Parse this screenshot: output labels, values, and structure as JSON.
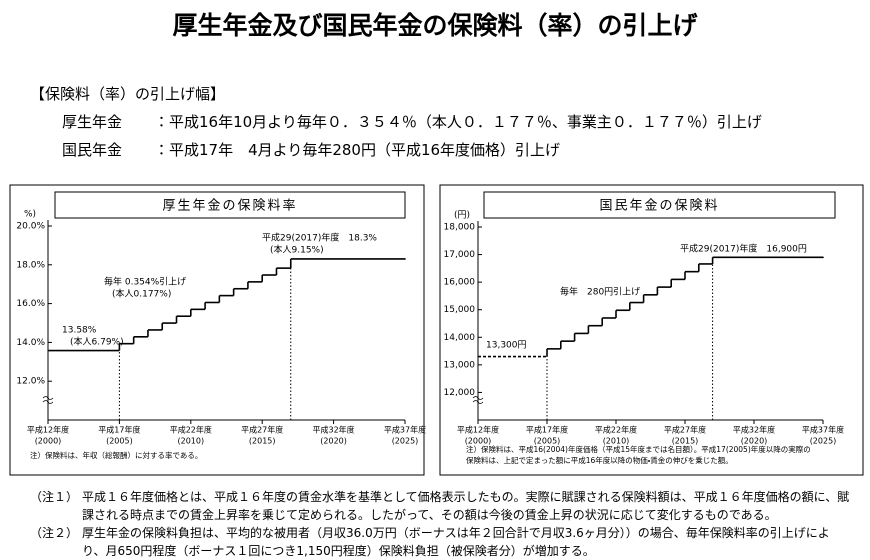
{
  "title": "厚生年金及び国民年金の保険料（率）の引上げ",
  "summary": {
    "heading": "【保険料（率）の引上げ幅】",
    "rows": [
      [
        "厚生年金",
        "：平成16年10月より毎年０．３５４％（本人０．１７７％、事業主０．１７７％）引上げ"
      ],
      [
        "国民年金",
        "：平成17年　4月より毎年280円（平成16年度価格）引上げ"
      ]
    ]
  },
  "chart_data": [
    {
      "type": "step",
      "title": "厚生年金の保険料率",
      "y_unit": "%)",
      "x": [
        2000,
        2005,
        2006,
        2007,
        2008,
        2009,
        2010,
        2011,
        2012,
        2013,
        2014,
        2015,
        2016,
        2017,
        2025
      ],
      "values": [
        13.58,
        13.934,
        14.288,
        14.642,
        14.996,
        15.35,
        15.704,
        16.058,
        16.412,
        16.766,
        17.12,
        17.474,
        17.828,
        18.3,
        18.3
      ],
      "color": "#000000",
      "xlim": [
        2000,
        2025
      ],
      "xticks": [
        {
          "value": 2000,
          "label": [
            "平成12年度",
            "(2000)"
          ]
        },
        {
          "value": 2005,
          "label": [
            "平成17年度",
            "(2005)"
          ]
        },
        {
          "value": 2010,
          "label": [
            "平成22年度",
            "(2010)"
          ]
        },
        {
          "value": 2015,
          "label": [
            "平成27年度",
            "(2015)"
          ]
        },
        {
          "value": 2020,
          "label": [
            "平成32年度",
            "(2020)"
          ]
        },
        {
          "value": 2025,
          "label": [
            "平成37年度",
            "(2025)"
          ]
        }
      ],
      "ylim": [
        10,
        20
      ],
      "yticks": [
        {
          "value": 12,
          "label": "12.0%"
        },
        {
          "value": 14,
          "label": "14.0%"
        },
        {
          "value": 16,
          "label": "16.0%"
        },
        {
          "value": 18,
          "label": "18.0%"
        },
        {
          "value": 20,
          "label": "20.0%"
        }
      ],
      "reference_lines": [
        2005,
        2017
      ],
      "annotations": [
        [
          "13.58%",
          "(本人6.79%)"
        ],
        [
          "毎年 0.354%引上げ",
          "(本人0.177%)"
        ],
        [
          "平成29(2017)年度　18.3%",
          "(本人9.15%)"
        ]
      ],
      "note": [
        "注）保険料は、年収（総報酬）に対する率である。"
      ]
    },
    {
      "type": "step",
      "title": "国民年金の保険料",
      "y_unit": "(円)",
      "x": [
        2000,
        2005,
        2006,
        2007,
        2008,
        2009,
        2010,
        2011,
        2012,
        2013,
        2014,
        2015,
        2016,
        2017,
        2025
      ],
      "values": [
        13300,
        13580,
        13860,
        14140,
        14420,
        14700,
        14980,
        15260,
        15540,
        15820,
        16100,
        16380,
        16660,
        16900,
        16900
      ],
      "color": "#000000",
      "dashed_before": 2005,
      "xlim": [
        2000,
        2025
      ],
      "xticks": [
        {
          "value": 2000,
          "label": [
            "平成12年度",
            "(2000)"
          ]
        },
        {
          "value": 2005,
          "label": [
            "平成17年度",
            "(2005)"
          ]
        },
        {
          "value": 2010,
          "label": [
            "平成22年度",
            "(2010)"
          ]
        },
        {
          "value": 2015,
          "label": [
            "平成27年度",
            "(2015)"
          ]
        },
        {
          "value": 2020,
          "label": [
            "平成32年度",
            "(2020)"
          ]
        },
        {
          "value": 2025,
          "label": [
            "平成37年度",
            "(2025)"
          ]
        }
      ],
      "ylim": [
        11000,
        18000
      ],
      "yticks": [
        {
          "value": 12000,
          "label": "12,000"
        },
        {
          "value": 13000,
          "label": "13,000"
        },
        {
          "value": 14000,
          "label": "14,000"
        },
        {
          "value": 15000,
          "label": "15,000"
        },
        {
          "value": 16000,
          "label": "16,000"
        },
        {
          "value": 17000,
          "label": "17,000"
        },
        {
          "value": 18000,
          "label": "18,000"
        }
      ],
      "reference_lines": [
        2005,
        2017
      ],
      "annotations": [
        [
          "13,300円"
        ],
        [
          "毎年　280円引上げ"
        ],
        [
          "平成29(2017)年度　16,900円"
        ]
      ],
      "note": [
        "注）保険料は、平成16(2004)年度価格（平成15年度までは名目額）。平成17(2005)年度以降の実際の",
        "保険料は、上記で定まった額に平成16年度以降の物価・賃金の伸びを乗じた額。"
      ]
    }
  ],
  "notes": [
    [
      "（注１）",
      "平成１６年度価格とは、平成１６年度の賃金水準を基準として価格表示したもの。実際に賦課される保険料額は、平成１６年度価格の額に、賦課される時点までの賃金上昇率を乗じて定められる。したがって、その額は今後の賃金上昇の状況に応じて変化するものである。"
    ],
    [
      "（注２）",
      "厚生年金の保険料負担は、平均的な被用者（月収36.0万円（ボーナスは年２回合計で月収3.6ヶ月分））の場合、毎年保険料率の引上げにより、月650円程度（ボーナス１回につき1,150円程度）保険料負担（被保険者分）が増加する。"
    ]
  ]
}
